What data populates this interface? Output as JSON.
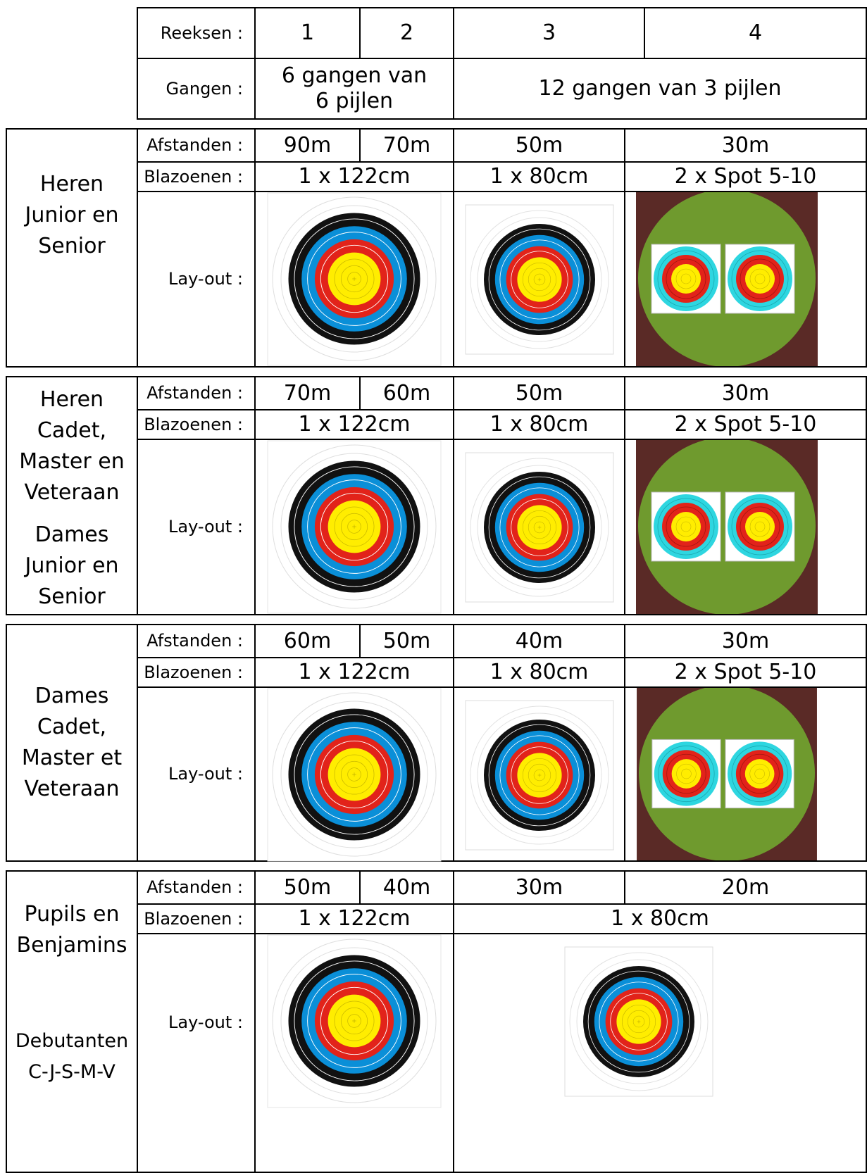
{
  "header": {
    "reeksen_label": "Reeksen :",
    "series": [
      "1",
      "2",
      "3",
      "4"
    ],
    "gangen_label": "Gangen :",
    "gangen_a": "6 gangen van 6 pijlen",
    "gangen_b": "12 gangen van 3 pijlen"
  },
  "labels": {
    "afstanden": "Afstanden :",
    "blazoenen": "Blazoenen :",
    "layout": "Lay-out :"
  },
  "sections": [
    {
      "category": [
        "Heren",
        "Junior en",
        "Senior"
      ],
      "distances": [
        "90m",
        "70m",
        "50m",
        "30m"
      ],
      "faces": [
        "1 x 122cm",
        "1 x 80cm",
        "2 x Spot 5-10"
      ]
    },
    {
      "category": [
        "Heren",
        "Cadet,",
        "Master en",
        "Veteraan"
      ],
      "category2": [
        "Dames",
        "Junior en",
        "Senior"
      ],
      "distances": [
        "70m",
        "60m",
        "50m",
        "30m"
      ],
      "faces": [
        "1 x 122cm",
        "1 x 80cm",
        "2 x Spot 5-10"
      ]
    },
    {
      "category": [
        "Dames",
        "Cadet,",
        "Master et",
        "Veteraan"
      ],
      "distances": [
        "60m",
        "50m",
        "40m",
        "30m"
      ],
      "faces": [
        "1 x 122cm",
        "1 x 80cm",
        "2 x Spot 5-10"
      ]
    },
    {
      "category": [
        "Pupils en",
        "Benjamins"
      ],
      "category2": [
        "Debutanten",
        "C-J-S-M-V"
      ],
      "distances": [
        "50m",
        "40m",
        "30m",
        "20m"
      ],
      "faces": [
        "1 x 122cm",
        "1 x 80cm"
      ]
    }
  ],
  "colors": {
    "gold": "#ffed00",
    "red": "#e2231a",
    "blue": "#0a8fd8",
    "black": "#111111",
    "spot_cyan": "#2ed6e0",
    "field_green": "#6f9a2e",
    "field_brown": "#5a2a26"
  }
}
